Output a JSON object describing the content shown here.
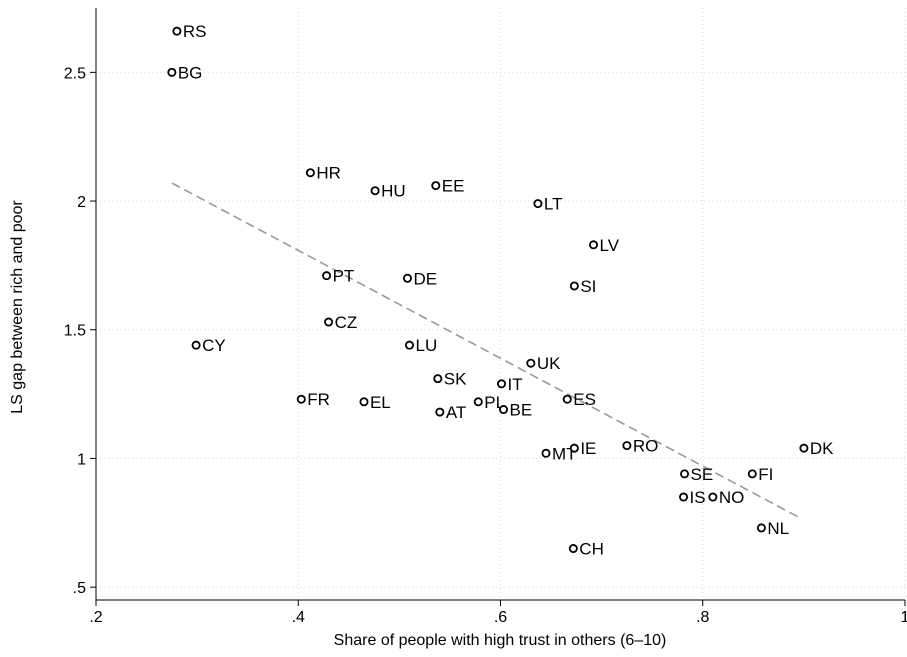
{
  "chart_data": {
    "type": "scatter",
    "xlabel": "Share of people with high trust in others (6–10)",
    "ylabel": "LS gap between rich and poor",
    "xlim": [
      0.2,
      1.0
    ],
    "ylim": [
      0.45,
      2.75
    ],
    "x_ticks": [
      0.2,
      0.4,
      0.6,
      0.8,
      1.0
    ],
    "x_tick_labels": [
      ".2",
      ".4",
      ".6",
      ".8",
      "1"
    ],
    "y_ticks": [
      0.5,
      1.0,
      1.5,
      2.0,
      2.5
    ],
    "y_tick_labels": [
      ".5",
      "1",
      "1.5",
      "2",
      "2.5"
    ],
    "grid": true,
    "marker": "hollow-circle",
    "fit_line": {
      "style": "dashed",
      "color": "#999999",
      "x": [
        0.275,
        0.898
      ],
      "y": [
        2.07,
        0.765
      ]
    },
    "points": [
      {
        "label": "RS",
        "x": 0.28,
        "y": 2.66
      },
      {
        "label": "BG",
        "x": 0.275,
        "y": 2.5
      },
      {
        "label": "HR",
        "x": 0.412,
        "y": 2.11
      },
      {
        "label": "HU",
        "x": 0.476,
        "y": 2.04
      },
      {
        "label": "EE",
        "x": 0.536,
        "y": 2.06
      },
      {
        "label": "LT",
        "x": 0.637,
        "y": 1.99
      },
      {
        "label": "LV",
        "x": 0.692,
        "y": 1.83
      },
      {
        "label": "PT",
        "x": 0.428,
        "y": 1.71
      },
      {
        "label": "DE",
        "x": 0.508,
        "y": 1.7
      },
      {
        "label": "SI",
        "x": 0.673,
        "y": 1.67
      },
      {
        "label": "CZ",
        "x": 0.43,
        "y": 1.53
      },
      {
        "label": "CY",
        "x": 0.299,
        "y": 1.44
      },
      {
        "label": "LU",
        "x": 0.51,
        "y": 1.44
      },
      {
        "label": "UK",
        "x": 0.63,
        "y": 1.37
      },
      {
        "label": "SK",
        "x": 0.538,
        "y": 1.31
      },
      {
        "label": "IT",
        "x": 0.601,
        "y": 1.29
      },
      {
        "label": "FR",
        "x": 0.403,
        "y": 1.23
      },
      {
        "label": "EL",
        "x": 0.465,
        "y": 1.22
      },
      {
        "label": "PL",
        "x": 0.578,
        "y": 1.22
      },
      {
        "label": "ES",
        "x": 0.666,
        "y": 1.23
      },
      {
        "label": "AT",
        "x": 0.54,
        "y": 1.18
      },
      {
        "label": "BE",
        "x": 0.603,
        "y": 1.19
      },
      {
        "label": "MT",
        "x": 0.645,
        "y": 1.02
      },
      {
        "label": "IE",
        "x": 0.673,
        "y": 1.04
      },
      {
        "label": "RO",
        "x": 0.725,
        "y": 1.05
      },
      {
        "label": "DK",
        "x": 0.9,
        "y": 1.04
      },
      {
        "label": "SE",
        "x": 0.782,
        "y": 0.94
      },
      {
        "label": "FI",
        "x": 0.849,
        "y": 0.94
      },
      {
        "label": "IS",
        "x": 0.781,
        "y": 0.85
      },
      {
        "label": "NO",
        "x": 0.81,
        "y": 0.85
      },
      {
        "label": "NL",
        "x": 0.858,
        "y": 0.73
      },
      {
        "label": "CH",
        "x": 0.672,
        "y": 0.65
      }
    ]
  }
}
